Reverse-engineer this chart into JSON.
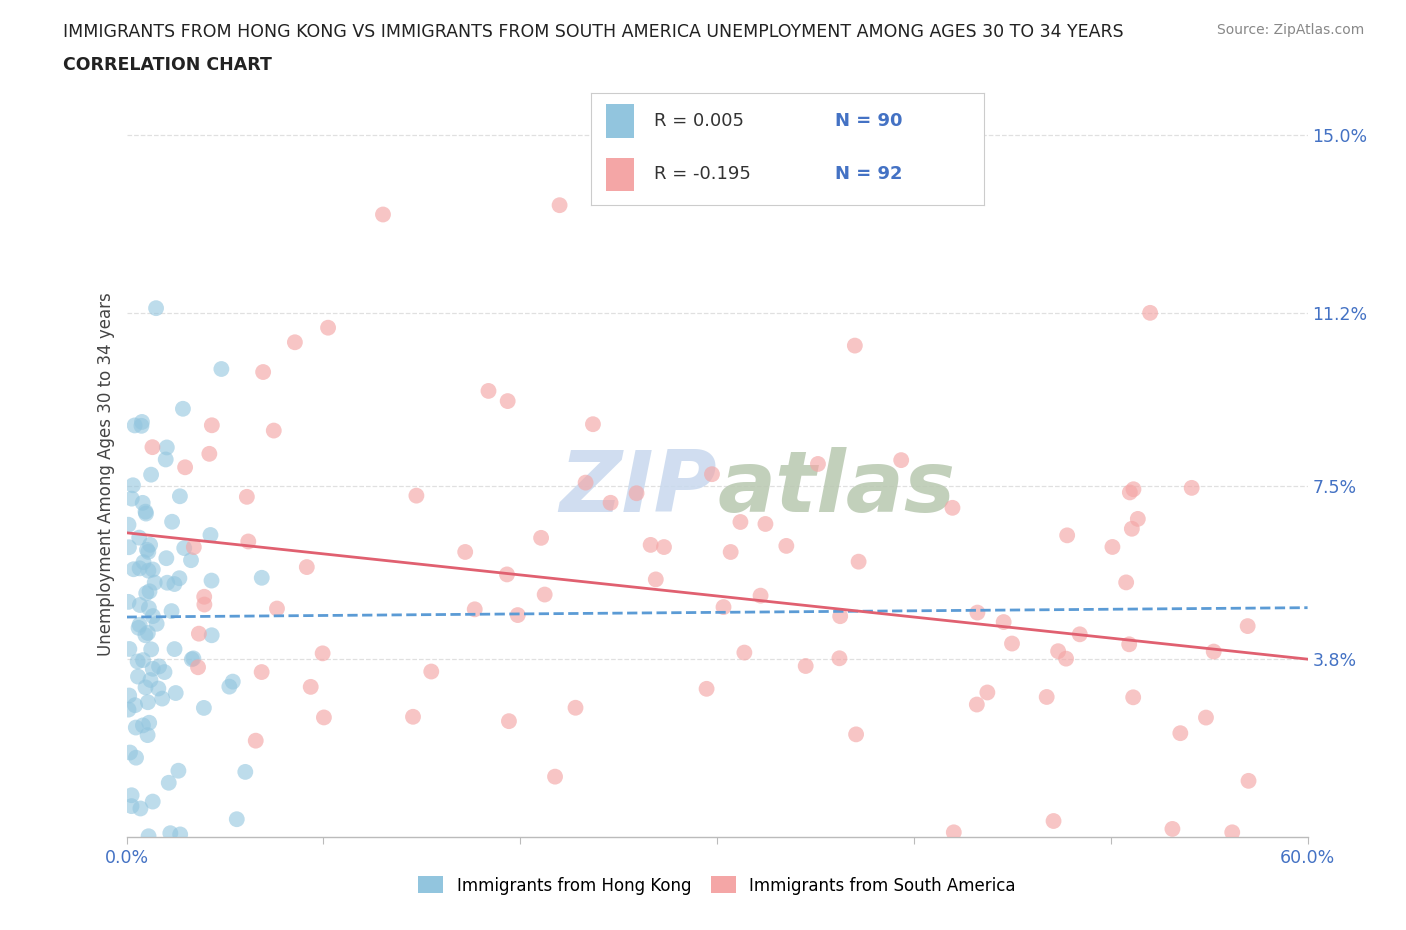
{
  "title_line1": "IMMIGRANTS FROM HONG KONG VS IMMIGRANTS FROM SOUTH AMERICA UNEMPLOYMENT AMONG AGES 30 TO 34 YEARS",
  "title_line2": "CORRELATION CHART",
  "source_text": "Source: ZipAtlas.com",
  "ylabel": "Unemployment Among Ages 30 to 34 years",
  "xlim": [
    0.0,
    0.6
  ],
  "ylim": [
    0.0,
    0.155
  ],
  "yticks": [
    0.038,
    0.075,
    0.112,
    0.15
  ],
  "ytick_labels": [
    "3.8%",
    "7.5%",
    "11.2%",
    "15.0%"
  ],
  "xtick_positions": [
    0.0,
    0.1,
    0.2,
    0.3,
    0.4,
    0.5,
    0.6
  ],
  "xtick_labels": [
    "0.0%",
    "",
    "",
    "",
    "",
    "",
    "60.0%"
  ],
  "hk_R": 0.005,
  "hk_N": 90,
  "sa_R": -0.195,
  "sa_N": 92,
  "hk_color": "#92c5de",
  "sa_color": "#f4a6a6",
  "hk_line_color": "#5b9bd5",
  "sa_line_color": "#e06070",
  "watermark_color": "#c8d8ee",
  "background_color": "#ffffff",
  "legend_label_hk": "Immigrants from Hong Kong",
  "legend_label_sa": "Immigrants from South America",
  "title_color": "#222222",
  "axis_label_color": "#444444",
  "tick_label_color_blue": "#4472c4",
  "legend_R_color": "#4472c4",
  "legend_R_text_color": "#333333",
  "grid_color": "#e0e0e0",
  "spine_color": "#bbbbbb"
}
